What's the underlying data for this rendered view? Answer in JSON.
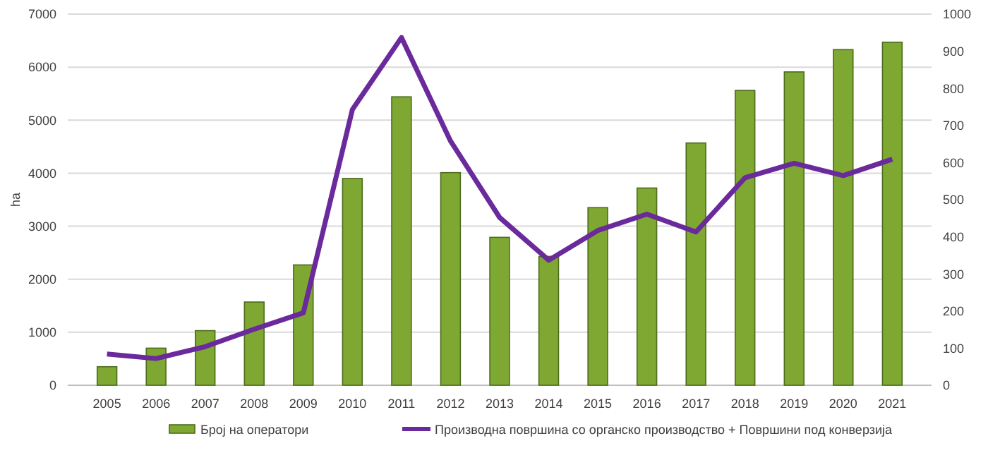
{
  "chart_data": {
    "type": "bar",
    "ylabel": "ha",
    "categories": [
      "2005",
      "2006",
      "2007",
      "2008",
      "2009",
      "2010",
      "2011",
      "2012",
      "2013",
      "2014",
      "2015",
      "2016",
      "2017",
      "2018",
      "2019",
      "2020",
      "2021"
    ],
    "series": [
      {
        "name": "Број на оператори",
        "color": "#7fa832",
        "values": [
          350,
          700,
          1030,
          1570,
          2270,
          3900,
          5440,
          4010,
          2790,
          2430,
          3350,
          3720,
          4570,
          5560,
          5910,
          6330,
          6470
        ]
      },
      {
        "name": "Производна површина со органско производство + Површини под конверзија",
        "type": "line",
        "axis": "y2",
        "color": "#6a2a9c",
        "values": [
          84,
          72,
          104,
          151,
          195,
          743,
          937,
          658,
          452,
          337,
          417,
          461,
          413,
          559,
          598,
          565,
          609
        ]
      }
    ],
    "ylim": [
      0,
      7000
    ],
    "yticks": [
      0,
      1000,
      2000,
      3000,
      4000,
      5000,
      6000,
      7000
    ],
    "y2lim": [
      0,
      1000
    ],
    "y2ticks": [
      0,
      100,
      200,
      300,
      400,
      500,
      600,
      700,
      800,
      900,
      1000
    ],
    "grid": "y",
    "legend": "bottom",
    "marker": "none",
    "line_style": "solid"
  }
}
